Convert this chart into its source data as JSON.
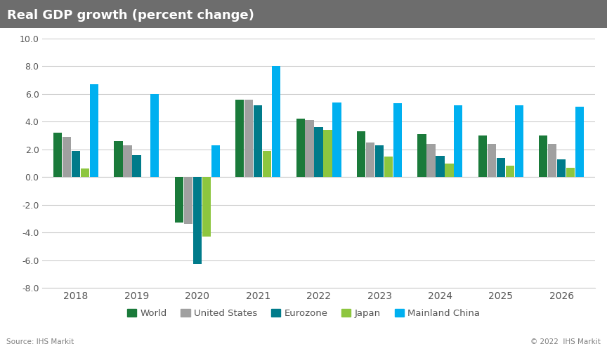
{
  "title": "Real GDP growth (percent change)",
  "years": [
    2018,
    2019,
    2020,
    2021,
    2022,
    2023,
    2024,
    2025,
    2026
  ],
  "series": {
    "World": [
      3.2,
      2.6,
      -3.3,
      5.6,
      4.2,
      3.3,
      3.1,
      3.0,
      3.0
    ],
    "United States": [
      2.9,
      2.3,
      -3.4,
      5.6,
      4.1,
      2.5,
      2.4,
      2.4,
      2.4
    ],
    "Eurozone": [
      1.9,
      1.6,
      -6.3,
      5.2,
      3.6,
      2.3,
      1.55,
      1.4,
      1.3
    ],
    "Japan": [
      0.6,
      0.0,
      -4.3,
      1.9,
      3.4,
      1.5,
      1.0,
      0.8,
      0.65
    ],
    "Mainland China": [
      6.7,
      6.0,
      2.3,
      8.0,
      5.4,
      5.35,
      5.2,
      5.2,
      5.1
    ]
  },
  "colors": {
    "World": "#1a7a3a",
    "United States": "#a0a0a0",
    "Eurozone": "#007b8a",
    "Japan": "#8dc63f",
    "Mainland China": "#00b0f0"
  },
  "ylim": [
    -8.0,
    10.0
  ],
  "yticks": [
    -8.0,
    -6.0,
    -4.0,
    -2.0,
    0.0,
    2.0,
    4.0,
    6.0,
    8.0,
    10.0
  ],
  "title_bg_color": "#6d6d6d",
  "title_text_color": "#ffffff",
  "source_text": "Source: IHS Markit",
  "copyright_text": "© 2022  IHS Markit",
  "footer_text_color": "#808080",
  "background_color": "#ffffff",
  "grid_color": "#cccccc"
}
